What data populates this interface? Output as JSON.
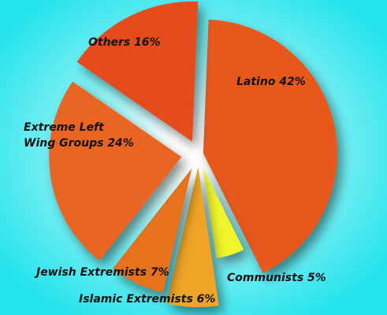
{
  "chart_data": {
    "type": "pie",
    "style": "exploded-3d",
    "background": "#22e3ec",
    "slices": [
      {
        "label": "Latino 42%",
        "value": 42,
        "color": "#e8581e"
      },
      {
        "label": "Communists 5%",
        "value": 5,
        "color": "#eef52a"
      },
      {
        "label": "Islamic Extremists 6%",
        "value": 6,
        "color": "#efa428"
      },
      {
        "label": "Jewish Extremists 7%",
        "value": 7,
        "color": "#e8711f"
      },
      {
        "label": "Extreme Left Wing Groups 24%",
        "label_lines": [
          "Extreme Left",
          "Wing Groups 24%"
        ],
        "value": 24,
        "color": "#ea6520"
      },
      {
        "label": "Others 16%",
        "value": 16,
        "color": "#e64b1f"
      }
    ]
  }
}
